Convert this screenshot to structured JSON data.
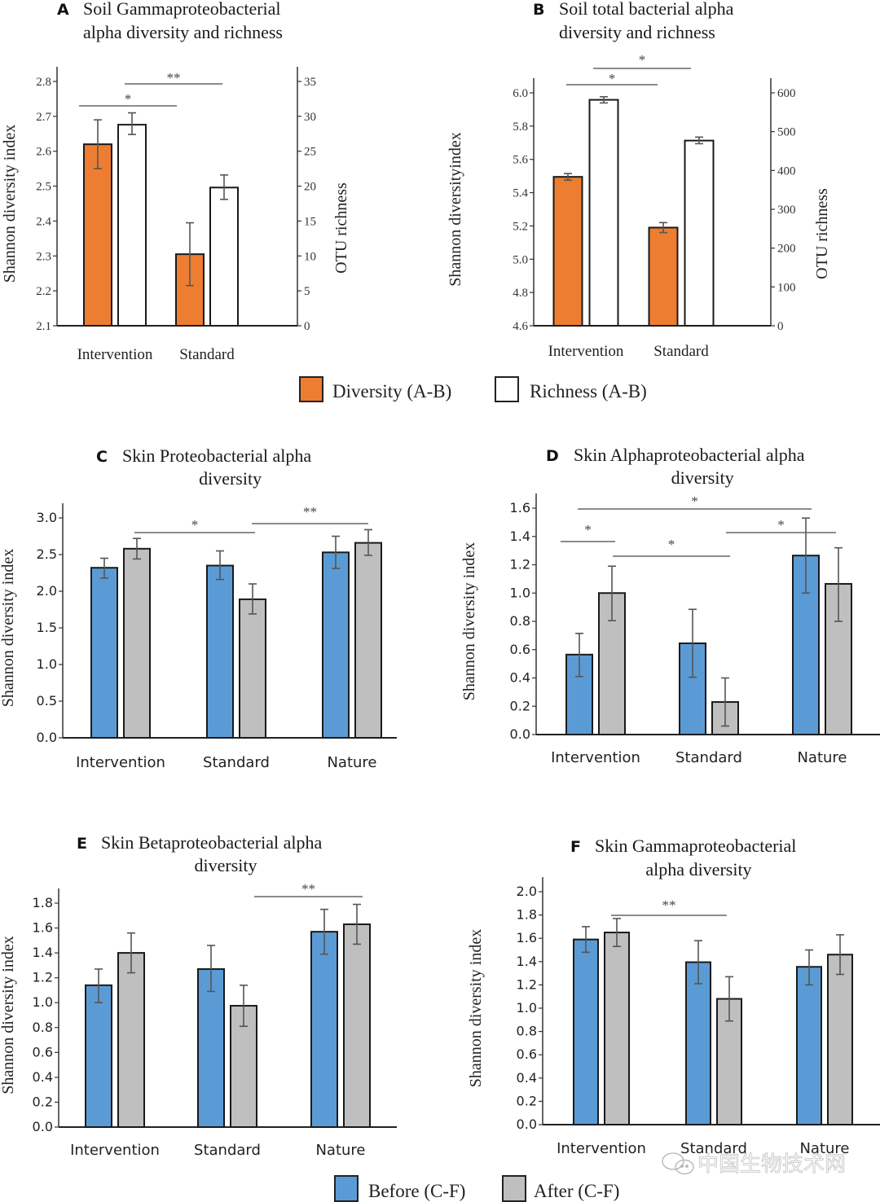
{
  "colors": {
    "diversity": "#ed7d31",
    "richness": "#ffffff",
    "before": "#5b9bd5",
    "after": "#bfbfbf",
    "bar_stroke": "#1a1a1a",
    "error": "#555555",
    "bracket": "#666666"
  },
  "legend_ab": {
    "items": [
      {
        "label": "Diversity (A-B)",
        "color": "#ed7d31"
      },
      {
        "label": "Richness (A-B)",
        "color": "#ffffff"
      }
    ]
  },
  "legend_cf": {
    "items": [
      {
        "label": "Before (C-F)",
        "color": "#5b9bd5"
      },
      {
        "label": "After (C-F)",
        "color": "#bfbfbf"
      }
    ]
  },
  "watermark": "中国生物技术网",
  "chart_data": [
    {
      "id": "A",
      "type": "bar",
      "letter": "A",
      "title": [
        "Soil Gammaproteobacterial",
        "alpha diversity and  richness"
      ],
      "ylabel": "Shannon diversity index",
      "y2label": "OTU richness",
      "categories": [
        "Intervention",
        "Standard"
      ],
      "ylim": [
        2.1,
        2.8
      ],
      "yticks": [
        "2.1",
        "2.2",
        "2.3",
        "2.4",
        "2.5",
        "2.6",
        "2.7",
        "2.8"
      ],
      "y2lim": [
        0,
        35
      ],
      "y2ticks": [
        "0",
        "5",
        "10",
        "15",
        "20",
        "25",
        "30",
        "35"
      ],
      "series": [
        {
          "name": "Diversity",
          "axis": "left",
          "values": [
            2.62,
            2.305
          ],
          "err_low": [
            2.55,
            2.215
          ],
          "err_high": [
            2.69,
            2.395
          ]
        },
        {
          "name": "Richness",
          "axis": "right",
          "values": [
            28.8,
            19.8
          ],
          "err_low": [
            27.4,
            18.1
          ],
          "err_high": [
            30.5,
            21.6
          ]
        }
      ],
      "significance": [
        {
          "label": "*",
          "from": "Intervention-Diversity",
          "to": "Standard-Diversity"
        },
        {
          "label": "**",
          "from": "Intervention-Richness",
          "to": "Standard-Richness"
        }
      ],
      "grid": false
    },
    {
      "id": "B",
      "type": "bar",
      "letter": "B",
      "title": [
        "Soil total bacterial alpha",
        "diversity and richness"
      ],
      "ylabel": "Shannon diversityindex",
      "y2label": "OTU richness",
      "categories": [
        "Intervention",
        "Standard"
      ],
      "ylim": [
        4.6,
        6.0
      ],
      "yticks": [
        "4.6",
        "4.8",
        "5.0",
        "5.2",
        "5.4",
        "5.6",
        "5.8",
        "6.0"
      ],
      "y2lim": [
        0,
        600
      ],
      "y2ticks": [
        "0",
        "100",
        "200",
        "300",
        "400",
        "500",
        "600"
      ],
      "series": [
        {
          "name": "Diversity",
          "axis": "left",
          "values": [
            5.495,
            5.19
          ],
          "err_low": [
            5.475,
            5.16
          ],
          "err_high": [
            5.515,
            5.22
          ]
        },
        {
          "name": "Richness",
          "axis": "right",
          "values": [
            582,
            477
          ],
          "err_low": [
            574,
            469
          ],
          "err_high": [
            590,
            486
          ]
        }
      ],
      "significance": [
        {
          "label": "*",
          "from": "Intervention-Diversity",
          "to": "Standard-Diversity"
        },
        {
          "label": "*",
          "from": "Intervention-Richness",
          "to": "Standard-Richness"
        }
      ],
      "grid": false
    },
    {
      "id": "C",
      "type": "bar",
      "letter": "C",
      "title": [
        "Skin Proteobacterial alpha",
        "diversity"
      ],
      "ylabel": "Shannon diversity index",
      "categories": [
        "Intervention",
        "Standard",
        "Nature"
      ],
      "ylim": [
        0,
        3.0
      ],
      "yticks": [
        "0.0",
        "0.5",
        "1.0",
        "1.5",
        "2.0",
        "2.5",
        "3.0"
      ],
      "series": [
        {
          "name": "Before",
          "values": [
            2.32,
            2.35,
            2.53
          ],
          "err_low": [
            2.18,
            2.16,
            2.31
          ],
          "err_high": [
            2.45,
            2.55,
            2.75
          ]
        },
        {
          "name": "After",
          "values": [
            2.58,
            1.89,
            2.66
          ],
          "err_low": [
            2.44,
            1.69,
            2.49
          ],
          "err_high": [
            2.72,
            2.1,
            2.84
          ]
        }
      ],
      "significance": [
        {
          "label": "*",
          "from": "Intervention-After",
          "to": "Standard-After"
        },
        {
          "label": "**",
          "from": "Standard-After",
          "to": "Nature-After"
        }
      ],
      "grid": false
    },
    {
      "id": "D",
      "type": "bar",
      "letter": "D",
      "title": [
        "Skin Alphaproteobacterial alpha",
        "diversity"
      ],
      "ylabel": "Shannon diversity index",
      "categories": [
        "Intervention",
        "Standard",
        "Nature"
      ],
      "ylim": [
        0,
        1.6
      ],
      "yticks": [
        "0.0",
        "0.2",
        "0.4",
        "0.6",
        "0.8",
        "1.0",
        "1.2",
        "1.4",
        "1.6"
      ],
      "series": [
        {
          "name": "Before",
          "values": [
            0.565,
            0.645,
            1.265
          ],
          "err_low": [
            0.41,
            0.405,
            1.0
          ],
          "err_high": [
            0.715,
            0.885,
            1.53
          ]
        },
        {
          "name": "After",
          "values": [
            1.0,
            0.23,
            1.065
          ],
          "err_low": [
            0.805,
            0.06,
            0.8
          ],
          "err_high": [
            1.19,
            0.4,
            1.32
          ]
        }
      ],
      "significance": [
        {
          "label": "*",
          "from": "Intervention-Before",
          "to": "Nature-Before"
        },
        {
          "label": "*",
          "from": "Intervention-Before",
          "to": "Intervention-After"
        },
        {
          "label": "*",
          "from": "Intervention-After",
          "to": "Standard-After"
        },
        {
          "label": "*",
          "from": "Standard-After",
          "to": "Nature-After"
        }
      ],
      "grid": false
    },
    {
      "id": "E",
      "type": "bar",
      "letter": "E",
      "title": [
        "Skin Betaproteobacterial alpha",
        "diversity"
      ],
      "ylabel": "Shannon diversity index",
      "categories": [
        "Intervention",
        "Standard",
        "Nature"
      ],
      "ylim": [
        0,
        1.8
      ],
      "yticks": [
        "0.0",
        "0.2",
        "0.4",
        "0.6",
        "0.8",
        "1.0",
        "1.2",
        "1.4",
        "1.6",
        "1.8"
      ],
      "series": [
        {
          "name": "Before",
          "values": [
            1.14,
            1.27,
            1.57
          ],
          "err_low": [
            1.0,
            1.09,
            1.39
          ],
          "err_high": [
            1.27,
            1.46,
            1.75
          ]
        },
        {
          "name": "After",
          "values": [
            1.4,
            0.975,
            1.63
          ],
          "err_low": [
            1.24,
            0.81,
            1.47
          ],
          "err_high": [
            1.56,
            1.14,
            1.79
          ]
        }
      ],
      "significance": [
        {
          "label": "**",
          "from": "Standard-After",
          "to": "Nature-After"
        }
      ],
      "grid": false
    },
    {
      "id": "F",
      "type": "bar",
      "letter": "F",
      "title": [
        "Skin Gammaproteobacterial",
        "alpha diversity"
      ],
      "ylabel": "Shannon diversity index",
      "categories": [
        "Intervention",
        "Standard",
        "Nature"
      ],
      "ylim": [
        0,
        2.0
      ],
      "yticks": [
        "0.0",
        "0.2",
        "0.4",
        "0.6",
        "0.8",
        "1.0",
        "1.2",
        "1.4",
        "1.6",
        "1.8",
        "2.0"
      ],
      "series": [
        {
          "name": "Before",
          "values": [
            1.59,
            1.395,
            1.355
          ],
          "err_low": [
            1.48,
            1.21,
            1.2
          ],
          "err_high": [
            1.7,
            1.58,
            1.5
          ]
        },
        {
          "name": "After",
          "values": [
            1.65,
            1.08,
            1.46
          ],
          "err_low": [
            1.53,
            0.89,
            1.29
          ],
          "err_high": [
            1.77,
            1.27,
            1.63
          ]
        }
      ],
      "significance": [
        {
          "label": "**",
          "from": "Intervention-After",
          "to": "Standard-After"
        }
      ],
      "grid": false
    }
  ]
}
